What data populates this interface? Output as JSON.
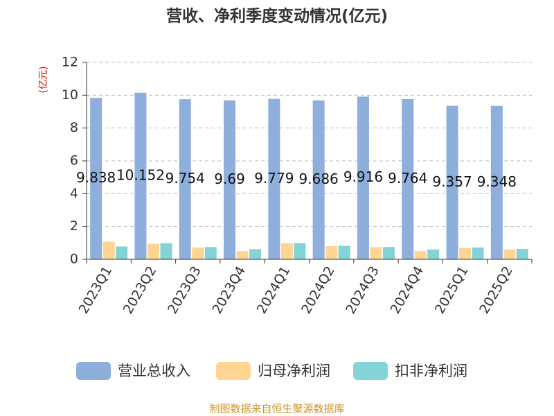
{
  "chart_data": {
    "type": "bar",
    "title": "营收、净利季度变动情况(亿元)",
    "y_label": "(亿元)",
    "source": "制图数据来自恒生聚源数据库",
    "categories": [
      "2023Q1",
      "2023Q2",
      "2023Q3",
      "2023Q4",
      "2024Q1",
      "2024Q2",
      "2024Q3",
      "2024Q4",
      "2025Q1",
      "2025Q2"
    ],
    "series": [
      {
        "name": "营业总收入",
        "color": "#8eaedb",
        "show_labels": true,
        "values": [
          9.838,
          10.152,
          9.754,
          9.69,
          9.779,
          9.686,
          9.916,
          9.764,
          9.357,
          9.348
        ]
      },
      {
        "name": "归母净利润",
        "color": "#ffd591",
        "show_labels": false,
        "values": [
          1.08,
          0.95,
          0.72,
          0.5,
          0.98,
          0.8,
          0.74,
          0.5,
          0.7,
          0.6
        ]
      },
      {
        "name": "扣非净利润",
        "color": "#82d4d6",
        "show_labels": false,
        "values": [
          0.78,
          0.98,
          0.75,
          0.62,
          0.98,
          0.82,
          0.75,
          0.6,
          0.72,
          0.63
        ]
      }
    ],
    "ylim": [
      0,
      12
    ],
    "yticks": [
      0,
      2,
      4,
      6,
      8,
      10,
      12
    ],
    "grid": true,
    "legend": "bottom"
  }
}
